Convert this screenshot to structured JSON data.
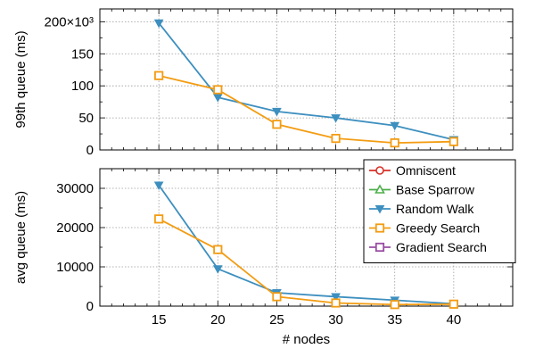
{
  "chart_data": [
    {
      "id": "top",
      "type": "line",
      "ylabel": "99th queue (ms)",
      "xlim": [
        10,
        45
      ],
      "ylim": [
        0,
        220
      ],
      "yticks": [
        {
          "value": 0,
          "label": "0"
        },
        {
          "value": 50,
          "label": "50"
        },
        {
          "value": 100,
          "label": "100"
        },
        {
          "value": 150,
          "label": "150"
        },
        {
          "value": 200,
          "label": "200×10³"
        }
      ],
      "grid": true,
      "x": [
        15,
        20,
        25,
        30,
        35,
        40
      ],
      "series": [
        {
          "name": "Random Walk",
          "color": "#3d8fbf",
          "marker": "triangle-down",
          "values": [
            198,
            82,
            60,
            50,
            38,
            16
          ]
        },
        {
          "name": "Greedy Search",
          "color": "#f39c12",
          "marker": "square",
          "values": [
            116,
            94,
            40,
            18,
            11,
            13
          ]
        }
      ]
    },
    {
      "id": "bottom",
      "type": "line",
      "ylabel": "avg queue (ms)",
      "xlabel": "# nodes",
      "xlim": [
        10,
        45
      ],
      "ylim": [
        0,
        35000
      ],
      "yticks": [
        {
          "value": 0,
          "label": "0"
        },
        {
          "value": 10000,
          "label": "10000"
        },
        {
          "value": 20000,
          "label": "20000"
        },
        {
          "value": 30000,
          "label": "30000"
        }
      ],
      "xticks": [
        {
          "value": 15,
          "label": "15"
        },
        {
          "value": 20,
          "label": "20"
        },
        {
          "value": 25,
          "label": "25"
        },
        {
          "value": 30,
          "label": "30"
        },
        {
          "value": 35,
          "label": "35"
        },
        {
          "value": 40,
          "label": "40"
        }
      ],
      "grid": true,
      "x": [
        15,
        20,
        25,
        30,
        35,
        40
      ],
      "series": [
        {
          "name": "Random Walk",
          "color": "#3d8fbf",
          "marker": "triangle-down",
          "values": [
            30800,
            9500,
            3400,
            2400,
            1500,
            600
          ]
        },
        {
          "name": "Greedy Search",
          "color": "#f39c12",
          "marker": "square",
          "values": [
            22200,
            14400,
            2400,
            800,
            400,
            500
          ]
        }
      ],
      "legend": {
        "position": "top-right",
        "entries": [
          {
            "label": "Omniscent",
            "color": "#d73027",
            "marker": "circle"
          },
          {
            "label": "Base Sparrow",
            "color": "#4daf4a",
            "marker": "triangle-up"
          },
          {
            "label": "Random Walk",
            "color": "#3d8fbf",
            "marker": "triangle-down"
          },
          {
            "label": "Greedy Search",
            "color": "#f39c12",
            "marker": "square"
          },
          {
            "label": "Gradient Search",
            "color": "#984ea3",
            "marker": "square"
          }
        ]
      }
    }
  ]
}
